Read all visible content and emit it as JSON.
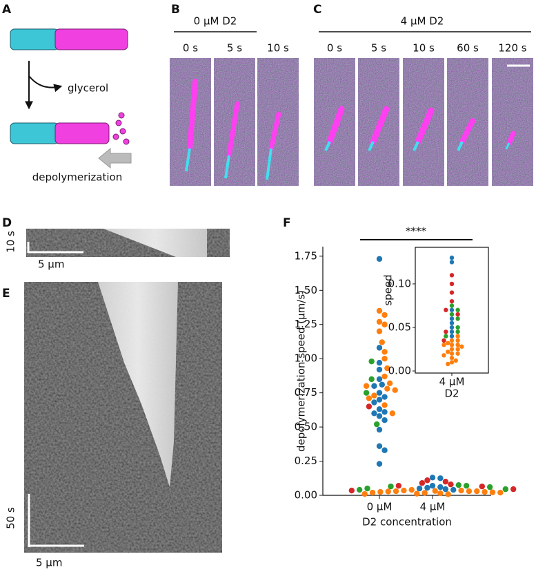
{
  "panel_labels": [
    "A",
    "B",
    "C",
    "D",
    "E",
    "F"
  ],
  "panel_a": {
    "label_top": "glycerol",
    "label_bottom": "depolymerization"
  },
  "panel_b": {
    "title": "0 μM D2",
    "times": [
      "0 s",
      "5 s",
      "10 s"
    ]
  },
  "panel_c": {
    "title": "4 μM D2",
    "times": [
      "0 s",
      "5 s",
      "10 s",
      "60 s",
      "120 s"
    ]
  },
  "panel_d": {
    "time_scale": "10 s",
    "length_scale": "5 μm"
  },
  "panel_e": {
    "time_scale": "50 s",
    "length_scale": "5 μm"
  },
  "chart_data": [
    {
      "type": "swarm",
      "xlabel": "D2 concentration",
      "ylabel": "depolymerization speed (μm/s)",
      "categories": [
        "0 μM",
        "4 μM"
      ],
      "significance": "****",
      "ylim": [
        0,
        1.82
      ],
      "yticks": [
        {
          "value": 0,
          "label": "0.00"
        },
        {
          "value": 0.25,
          "label": "0.25"
        },
        {
          "value": 0.5,
          "label": "0.50"
        },
        {
          "value": 0.75,
          "label": "0.75"
        },
        {
          "value": 1,
          "label": "1.00"
        },
        {
          "value": 1.25,
          "label": "1.25"
        },
        {
          "value": 1.5,
          "label": "1.50"
        },
        {
          "value": 1.75,
          "label": "1.75"
        }
      ],
      "series": [
        {
          "color": "#1f77b4",
          "values": [
            [
              1.73,
              1.08,
              0.97,
              0.92,
              0.85,
              0.81,
              0.8,
              0.75,
              0.72,
              0.7,
              0.68,
              0.63,
              0.61,
              0.6,
              0.58,
              0.55,
              0.48,
              0.36,
              0.33,
              0.23
            ],
            [
              0.13,
              0.125,
              0.07,
              0.06,
              0.055,
              0.05,
              0.045,
              0.04
            ]
          ]
        },
        {
          "color": "#ff7f0e",
          "values": [
            [
              1.35,
              1.32,
              1.27,
              1.25,
              1.2,
              1.12,
              1.05,
              1.0,
              0.93,
              0.87,
              0.82,
              0.8,
              0.78,
              0.77,
              0.73,
              0.71,
              0.66,
              0.6
            ],
            [
              0.04,
              0.035,
              0.035,
              0.032,
              0.03,
              0.03,
              0.03,
              0.028,
              0.025,
              0.025,
              0.022,
              0.02,
              0.02,
              0.018,
              0.015,
              0.012,
              0.01,
              0.008
            ]
          ]
        },
        {
          "color": "#2ca02c",
          "values": [
            [
              0.98,
              0.85,
              0.75,
              0.52
            ],
            [
              0.075,
              0.07,
              0.065,
              0.06,
              0.05,
              0.045,
              0.04
            ]
          ]
        },
        {
          "color": "#d62728",
          "values": [
            [
              0.65
            ],
            [
              0.11,
              0.1,
              0.09,
              0.08,
              0.07,
              0.065,
              0.045,
              0.035
            ]
          ]
        }
      ]
    },
    {
      "type": "swarm-inset",
      "xlabel": "D2",
      "ylabel": "speed",
      "categories": [
        "4 μM"
      ],
      "ylim": [
        0,
        0.142
      ],
      "yticks": [
        {
          "value": 0,
          "label": "0.00"
        },
        {
          "value": 0.05,
          "label": "0.05"
        },
        {
          "value": 0.1,
          "label": "0.10"
        }
      ]
    }
  ]
}
